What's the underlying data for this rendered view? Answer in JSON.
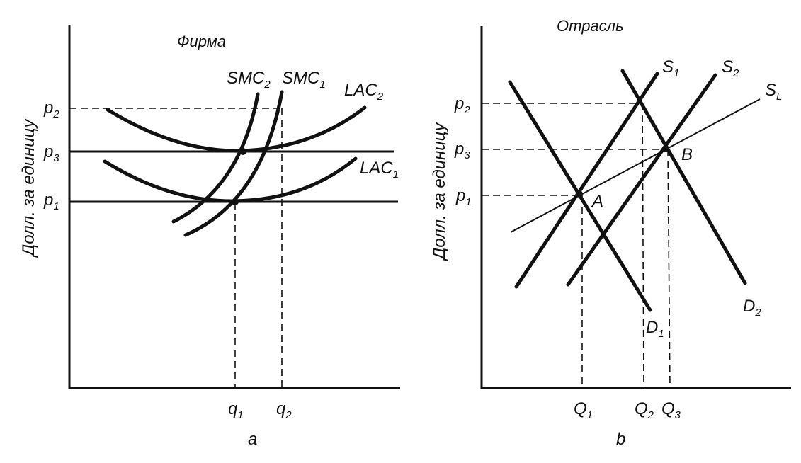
{
  "panel_a": {
    "title": "Фирма",
    "y_axis_label": "Долл. за единицу",
    "caption": "a",
    "price_labels": [
      {
        "base": "p",
        "sub": "2"
      },
      {
        "base": "p",
        "sub": "3"
      },
      {
        "base": "p",
        "sub": "1"
      }
    ],
    "quantity_labels": [
      {
        "base": "q",
        "sub": "1"
      },
      {
        "base": "q",
        "sub": "2"
      }
    ],
    "curve_labels": {
      "smc2": {
        "base": "SMC",
        "sub": "2"
      },
      "smc1": {
        "base": "SMC",
        "sub": "1"
      },
      "lac2": {
        "base": "LAC",
        "sub": "2"
      },
      "lac1": {
        "base": "LAC",
        "sub": "1"
      }
    }
  },
  "panel_b": {
    "title": "Отрасль",
    "y_axis_label": "Долл. за единицу",
    "caption": "b",
    "price_labels": [
      {
        "base": "p",
        "sub": "2"
      },
      {
        "base": "p",
        "sub": "3"
      },
      {
        "base": "p",
        "sub": "1"
      }
    ],
    "quantity_labels": [
      {
        "base": "Q",
        "sub": "1"
      },
      {
        "base": "Q",
        "sub": "2"
      },
      {
        "base": "Q",
        "sub": "3"
      }
    ],
    "curve_labels": {
      "s1": {
        "base": "S",
        "sub": "1"
      },
      "s2": {
        "base": "S",
        "sub": "2"
      },
      "sl": {
        "base": "S",
        "sub": "L"
      },
      "d1": {
        "base": "D",
        "sub": "1"
      },
      "d2": {
        "base": "D",
        "sub": "2"
      }
    },
    "points": {
      "a": "A",
      "b": "B"
    }
  }
}
